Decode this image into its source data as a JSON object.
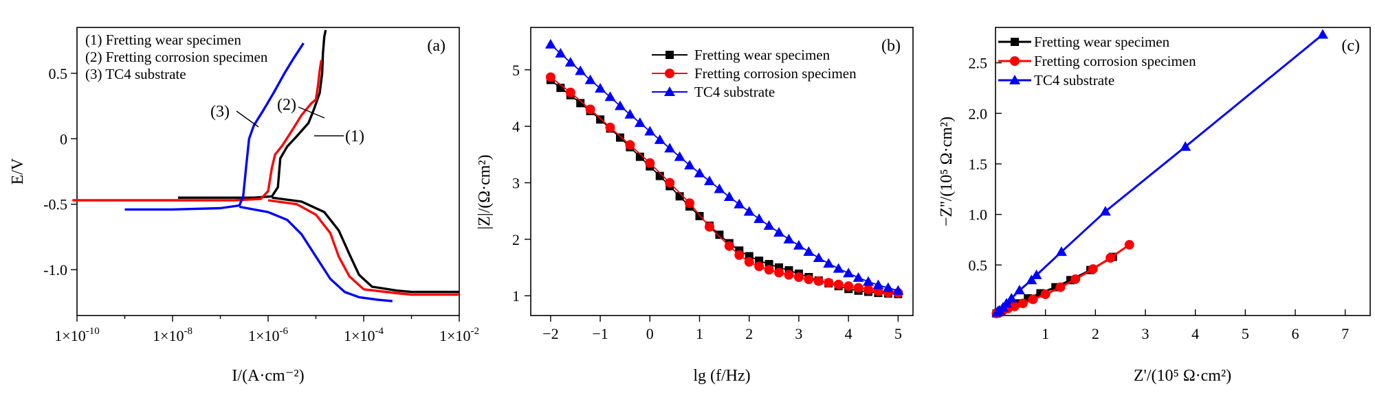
{
  "chart_data": [
    {
      "type": "line",
      "panel_label": "(a)",
      "xlabel": "I/(A·cm⁻²)",
      "ylabel": "E/V",
      "x_scale": "log",
      "xlim": [
        1e-10,
        0.01
      ],
      "ylim": [
        -1.35,
        0.85
      ],
      "x_tick_labels": [
        "1×10-10",
        "1×10-8",
        "1×10-6",
        "1×10-4",
        "1×10-2"
      ],
      "y_ticks": [
        0.5,
        0,
        -0.5,
        -1.0
      ],
      "y_tick_labels": [
        "0.5",
        "0",
        "-0.5",
        "-1.0"
      ],
      "legend_lines": [
        "(1) Fretting wear specimen",
        "(2) Fretting corrosion specimen",
        "(3) TC4 substrate"
      ],
      "annotations": [
        "(1)",
        "(2)",
        "(3)"
      ],
      "series": [
        {
          "color": "#000000",
          "anodic": [
            [
              1.3e-08,
              -0.45
            ],
            [
              1e-07,
              -0.45
            ],
            [
              5e-07,
              -0.45
            ],
            [
              1.2e-06,
              -0.44
            ],
            [
              1.6e-06,
              -0.37
            ],
            [
              1.8e-06,
              -0.15
            ],
            [
              2.5e-06,
              -0.06
            ],
            [
              4e-06,
              0.02
            ],
            [
              7e-06,
              0.12
            ],
            [
              9e-06,
              0.22
            ],
            [
              1.2e-05,
              0.35
            ],
            [
              1.35e-05,
              0.5
            ],
            [
              1.4e-05,
              0.65
            ],
            [
              1.5e-05,
              0.78
            ],
            [
              1.6e-05,
              0.83
            ]
          ],
          "cathodic": [
            [
              1.2e-06,
              -0.45
            ],
            [
              5e-06,
              -0.48
            ],
            [
              1.5e-05,
              -0.56
            ],
            [
              3e-05,
              -0.7
            ],
            [
              5e-05,
              -0.88
            ],
            [
              8e-05,
              -1.04
            ],
            [
              0.00015,
              -1.13
            ],
            [
              0.0005,
              -1.16
            ],
            [
              0.001,
              -1.17
            ],
            [
              0.01,
              -1.17
            ]
          ]
        },
        {
          "color": "#ff0000",
          "anodic": [
            [
              8e-11,
              -0.47
            ],
            [
              1e-08,
              -0.47
            ],
            [
              2e-07,
              -0.47
            ],
            [
              7e-07,
              -0.46
            ],
            [
              1e-06,
              -0.4
            ],
            [
              1.2e-06,
              -0.22
            ],
            [
              1.4e-06,
              -0.12
            ],
            [
              2e-06,
              -0.05
            ],
            [
              3e-06,
              0.05
            ],
            [
              5e-06,
              0.18
            ],
            [
              8e-06,
              0.27
            ],
            [
              1e-05,
              0.3
            ],
            [
              1.1e-05,
              0.4
            ],
            [
              1.2e-05,
              0.52
            ],
            [
              1.3e-05,
              0.6
            ]
          ],
          "cathodic": [
            [
              1e-06,
              -0.47
            ],
            [
              4e-06,
              -0.5
            ],
            [
              1e-05,
              -0.58
            ],
            [
              2e-05,
              -0.72
            ],
            [
              3e-05,
              -0.9
            ],
            [
              5e-05,
              -1.05
            ],
            [
              0.0001,
              -1.15
            ],
            [
              0.0005,
              -1.18
            ],
            [
              0.001,
              -1.19
            ],
            [
              0.01,
              -1.19
            ]
          ]
        },
        {
          "color": "#0000ff",
          "anodic": [
            [
              1e-09,
              -0.54
            ],
            [
              1e-08,
              -0.54
            ],
            [
              1e-07,
              -0.53
            ],
            [
              2.5e-07,
              -0.51
            ],
            [
              3e-07,
              -0.44
            ],
            [
              3.5e-07,
              -0.2
            ],
            [
              4e-07,
              0.0
            ],
            [
              5e-07,
              0.1
            ],
            [
              8e-07,
              0.22
            ],
            [
              1.3e-06,
              0.35
            ],
            [
              2.2e-06,
              0.5
            ],
            [
              3.5e-06,
              0.62
            ],
            [
              5.5e-06,
              0.73
            ]
          ],
          "cathodic": [
            [
              2.5e-07,
              -0.52
            ],
            [
              1e-06,
              -0.56
            ],
            [
              2.5e-06,
              -0.62
            ],
            [
              5e-06,
              -0.73
            ],
            [
              1e-05,
              -0.9
            ],
            [
              2e-05,
              -1.07
            ],
            [
              4e-05,
              -1.17
            ],
            [
              8e-05,
              -1.21
            ],
            [
              0.0002,
              -1.23
            ],
            [
              0.0004,
              -1.24
            ]
          ]
        }
      ]
    },
    {
      "type": "scatter",
      "panel_label": "(b)",
      "xlabel": "lg (f/Hz)",
      "ylabel": "|Z|/(Ω·cm²)",
      "xlim": [
        -2.4,
        5.3
      ],
      "ylim": [
        0.65,
        5.75
      ],
      "x_ticks": [
        -2,
        -1,
        0,
        1,
        2,
        3,
        4,
        5
      ],
      "y_ticks": [
        1,
        2,
        3,
        4,
        5
      ],
      "series": [
        {
          "name": "Fretting wear specimen",
          "color": "#000000",
          "marker": "square",
          "x": [
            -2,
            -1.8,
            -1.6,
            -1.4,
            -1.2,
            -1,
            -0.8,
            -0.6,
            -0.4,
            -0.2,
            0,
            0.2,
            0.4,
            0.6,
            0.8,
            1,
            1.2,
            1.4,
            1.6,
            1.8,
            2,
            2.2,
            2.4,
            2.6,
            2.8,
            3,
            3.2,
            3.4,
            3.6,
            3.8,
            4,
            4.2,
            4.4,
            4.6,
            4.8,
            5
          ],
          "y": [
            4.82,
            4.68,
            4.55,
            4.41,
            4.27,
            4.12,
            3.96,
            3.8,
            3.63,
            3.46,
            3.29,
            3.12,
            2.94,
            2.76,
            2.58,
            2.41,
            2.24,
            2.08,
            1.93,
            1.8,
            1.7,
            1.62,
            1.56,
            1.5,
            1.45,
            1.39,
            1.33,
            1.27,
            1.22,
            1.17,
            1.12,
            1.09,
            1.07,
            1.05,
            1.04,
            1.03
          ]
        },
        {
          "name": "Fretting corrosion specimen",
          "color": "#ff0000",
          "marker": "circle",
          "x": [
            -2,
            -1.6,
            -1.2,
            -0.8,
            -0.4,
            0,
            0.4,
            0.8,
            1.2,
            1.6,
            1.8,
            2,
            2.2,
            2.4,
            2.6,
            2.8,
            3,
            3.2,
            3.4,
            3.6,
            3.8,
            4,
            4.2,
            4.4,
            4.6,
            4.8,
            5
          ],
          "y": [
            4.87,
            4.6,
            4.3,
            3.98,
            3.67,
            3.35,
            3.0,
            2.64,
            2.22,
            1.88,
            1.72,
            1.6,
            1.52,
            1.46,
            1.41,
            1.37,
            1.33,
            1.29,
            1.26,
            1.23,
            1.2,
            1.17,
            1.14,
            1.11,
            1.08,
            1.06,
            1.05
          ]
        },
        {
          "name": "TC4 substrate",
          "color": "#0000ff",
          "marker": "triangle",
          "x": [
            -2,
            -1.8,
            -1.6,
            -1.4,
            -1.2,
            -1,
            -0.8,
            -0.6,
            -0.4,
            -0.2,
            0,
            0.2,
            0.4,
            0.6,
            0.8,
            1,
            1.2,
            1.4,
            1.6,
            1.8,
            2,
            2.2,
            2.4,
            2.6,
            2.8,
            3,
            3.2,
            3.4,
            3.6,
            3.8,
            4,
            4.2,
            4.4,
            4.6,
            4.8,
            5
          ],
          "y": [
            5.45,
            5.29,
            5.13,
            4.98,
            4.82,
            4.67,
            4.52,
            4.36,
            4.21,
            4.06,
            3.91,
            3.76,
            3.61,
            3.46,
            3.31,
            3.17,
            3.03,
            2.89,
            2.75,
            2.62,
            2.49,
            2.36,
            2.24,
            2.12,
            2.0,
            1.89,
            1.78,
            1.67,
            1.57,
            1.48,
            1.4,
            1.32,
            1.25,
            1.19,
            1.14,
            1.09
          ]
        }
      ]
    },
    {
      "type": "line",
      "panel_label": "(c)",
      "xlabel": "Z'/(10⁵ Ω·cm²)",
      "ylabel": "−Z''/(10⁵ Ω·cm²)",
      "xlim": [
        0,
        7.5
      ],
      "ylim": [
        0,
        2.85
      ],
      "x_ticks": [
        1,
        2,
        3,
        4,
        5,
        6,
        7
      ],
      "y_ticks": [
        0.5,
        1.0,
        1.5,
        2.0,
        2.5
      ],
      "series": [
        {
          "name": "Fretting wear specimen",
          "color": "#000000",
          "marker": "square",
          "x": [
            0.02,
            0.06,
            0.12,
            0.2,
            0.3,
            0.45,
            0.65,
            0.9,
            1.2,
            1.5,
            1.9,
            2.35
          ],
          "y": [
            0.02,
            0.03,
            0.05,
            0.07,
            0.09,
            0.12,
            0.17,
            0.22,
            0.28,
            0.35,
            0.45,
            0.58
          ]
        },
        {
          "name": "Fretting corrosion specimen",
          "color": "#ff0000",
          "marker": "circle",
          "x": [
            0.02,
            0.07,
            0.15,
            0.25,
            0.38,
            0.55,
            0.75,
            1.0,
            1.3,
            1.6,
            1.95,
            2.3,
            2.68
          ],
          "y": [
            0.02,
            0.03,
            0.05,
            0.07,
            0.09,
            0.12,
            0.16,
            0.21,
            0.28,
            0.36,
            0.46,
            0.57,
            0.7
          ]
        },
        {
          "name": "TC4 substrate",
          "color": "#0000ff",
          "marker": "triangle",
          "x": [
            0.03,
            0.08,
            0.15,
            0.22,
            0.32,
            0.48,
            0.72,
            0.82,
            1.32,
            2.2,
            3.8,
            6.55
          ],
          "y": [
            0.03,
            0.05,
            0.08,
            0.12,
            0.17,
            0.25,
            0.35,
            0.4,
            0.63,
            1.03,
            1.67,
            2.78
          ]
        }
      ]
    }
  ]
}
